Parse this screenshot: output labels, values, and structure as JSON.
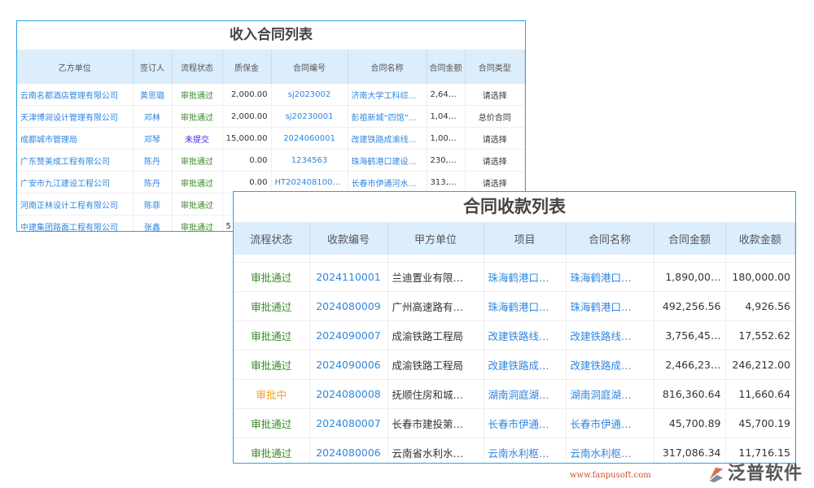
{
  "income": {
    "title": "收入合同列表",
    "columns": [
      "乙方单位",
      "签订人",
      "流程状态",
      "质保金",
      "合同编号",
      "合同名称",
      "合同金额",
      "合同类型"
    ],
    "rows": [
      [
        "云南名都酒店管理有限公司",
        "黄思璐",
        "审批通过",
        "2,000.00",
        "sj2023002",
        "济南大学工科综…",
        "2,64…",
        "请选择"
      ],
      [
        "天津博润设计管理有限公司",
        "邓林",
        "审批通过",
        "2,000.00",
        "sj20230001",
        "彭祖新城“四馆”…",
        "1,04…",
        "总价合同"
      ],
      [
        "成都城市管理局",
        "邓琴",
        "未提交",
        "15,000.00",
        "2024060001",
        "改建铁路成渝线…",
        "1,00…",
        "请选择"
      ],
      [
        "广东赞美成工程有限公司",
        "陈丹",
        "审批通过",
        "0.00",
        "1234563",
        "珠海鹤港口建设…",
        "230,…",
        "请选择"
      ],
      [
        "广安市九江建设工程公司",
        "陈丹",
        "审批通过",
        "0.00",
        "HT2024081000…",
        "长春市伊通河水…",
        "313,…",
        "请选择"
      ],
      [
        "河南正林设计工程有限公司",
        "陈菲",
        "审批通过",
        "",
        "",
        "",
        "",
        ""
      ],
      [
        "中建集团路面工程有限公司",
        "张鑫",
        "审批通过",
        "5",
        "",
        "",
        "",
        ""
      ]
    ]
  },
  "receipts": {
    "title": "合同收款列表",
    "columns": [
      "流程状态",
      "收款编号",
      "甲方单位",
      "项目",
      "合同名称",
      "合同金额",
      "收款金额"
    ],
    "rows": [
      [
        "审批通过",
        "2024110001",
        "兰迪置业有限…",
        "珠海鹤港口…",
        "珠海鹤港口…",
        "1,890,00…",
        "180,000.00"
      ],
      [
        "审批通过",
        "2024080009",
        "广州高速路有…",
        "珠海鹤港口…",
        "珠海鹤港口…",
        "492,256.56",
        "4,926.56"
      ],
      [
        "审批通过",
        "2024090007",
        "成渝铁路工程局",
        "改建铁路线…",
        "改建铁路线…",
        "3,756,45…",
        "17,552.62"
      ],
      [
        "审批通过",
        "2024090006",
        "成渝铁路工程局",
        "改建铁路成…",
        "改建铁路成…",
        "2,466,23…",
        "246,212.00"
      ],
      [
        "审批中",
        "2024080008",
        "抚顺住房和城…",
        "湖南洞庭湖…",
        "湖南洞庭湖…",
        "816,360.64",
        "11,660.64"
      ],
      [
        "审批通过",
        "2024080007",
        "长春市建投第…",
        "长春市伊通…",
        "长春市伊通…",
        "45,700.89",
        "45,700.19"
      ],
      [
        "审批通过",
        "2024080006",
        "云南省水利水…",
        "云南水利枢…",
        "云南水利枢…",
        "317,086.34",
        "11,716.15"
      ]
    ]
  },
  "logo": {
    "name": "泛普软件",
    "url": "www.fanpusoft.com"
  },
  "colors": {
    "border": "#29a3e6",
    "header_bg": "#dcedfb",
    "link": "#2f86e0",
    "approved": "#3a8a2a",
    "unsubmitted": "#3b2be0",
    "pending": "#f0a020"
  }
}
